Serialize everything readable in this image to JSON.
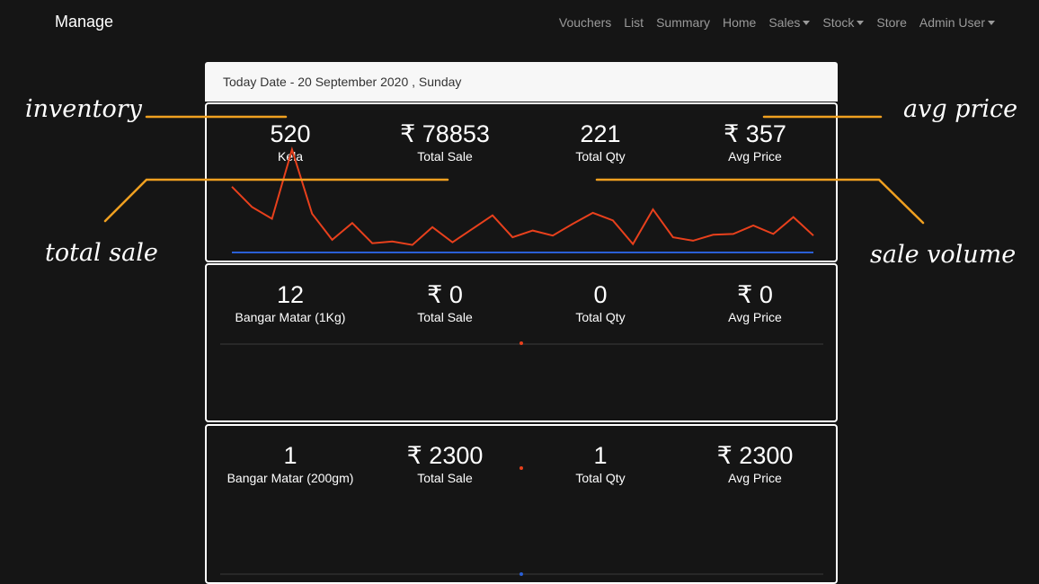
{
  "header": {
    "brand": "Manage",
    "nav": [
      {
        "label": "Vouchers",
        "dropdown": false
      },
      {
        "label": "List",
        "dropdown": false
      },
      {
        "label": "Summary",
        "dropdown": false
      },
      {
        "label": "Home",
        "dropdown": false
      },
      {
        "label": "Sales",
        "dropdown": true
      },
      {
        "label": "Stock",
        "dropdown": true
      },
      {
        "label": "Store",
        "dropdown": false
      },
      {
        "label": "Admin User",
        "dropdown": true
      }
    ]
  },
  "date_bar": "Today Date - 20 September 2020 , Sunday",
  "annotations": {
    "inventory": "inventory",
    "avg_price": "avg price",
    "total_sale": "total sale",
    "sale_volume": "sale volume",
    "line_color": "#f0a020"
  },
  "cards": [
    {
      "inventory": "520",
      "product": "Kela",
      "total_sale": "₹ 78853",
      "total_sale_label": "Total Sale",
      "total_qty": "221",
      "total_qty_label": "Total Qty",
      "avg_price": "₹ 357",
      "avg_price_label": "Avg Price"
    },
    {
      "inventory": "12",
      "product": "Bangar Matar (1Kg)",
      "total_sale": "₹ 0",
      "total_sale_label": "Total Sale",
      "total_qty": "0",
      "total_qty_label": "Total Qty",
      "avg_price": "₹ 0",
      "avg_price_label": "Avg Price"
    },
    {
      "inventory": "1",
      "product": "Bangar Matar (200gm)",
      "total_sale": "₹ 2300",
      "total_sale_label": "Total Sale",
      "total_qty": "1",
      "total_qty_label": "Total Qty",
      "avg_price": "₹ 2300",
      "avg_price_label": "Avg Price"
    }
  ],
  "chart_data": [
    {
      "type": "line",
      "series": [
        {
          "color": "#e8401c",
          "values": [
            78,
            54,
            40,
            122,
            46,
            15,
            35,
            11,
            13,
            9,
            30,
            12,
            28,
            44,
            18,
            26,
            20,
            34,
            47,
            38,
            10,
            51,
            18,
            14,
            21,
            22,
            32,
            22,
            42,
            20
          ]
        },
        {
          "color": "#2a5fd6",
          "values": [
            0,
            0,
            0,
            0,
            0,
            0,
            0,
            0,
            0,
            0,
            0,
            0,
            0,
            0,
            0,
            0,
            0,
            0,
            0,
            0,
            0,
            0,
            0,
            0,
            0,
            0,
            0,
            0,
            0,
            0
          ]
        }
      ],
      "ylim": [
        0,
        130
      ]
    },
    {
      "type": "scatter",
      "series": [
        {
          "color": "#e8401c",
          "values": [
            0
          ]
        }
      ]
    },
    {
      "type": "scatter",
      "series": [
        {
          "color": "#e8401c",
          "values": [
            2300
          ]
        },
        {
          "color": "#2a5fd6",
          "values": [
            0
          ]
        }
      ]
    }
  ]
}
